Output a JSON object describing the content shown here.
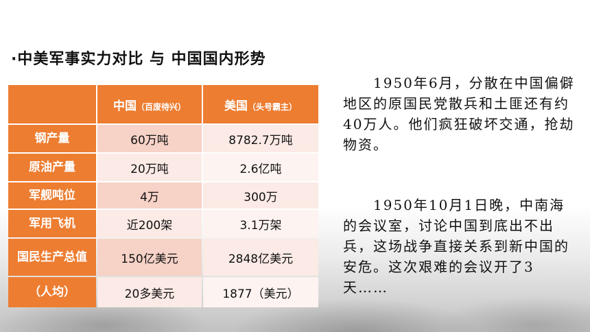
{
  "title": "·中美军事实力对比 与 中国国内形势",
  "table": {
    "header": {
      "china": "中国",
      "china_note": "（百废待兴）",
      "usa": "美国",
      "usa_note": "（头号霸主）"
    },
    "rows": [
      {
        "label": "钢产量",
        "china": "60万吨",
        "usa": "8782.7万吨"
      },
      {
        "label": "原油产量",
        "china": "20万吨",
        "usa": "2.6亿吨"
      },
      {
        "label": "军舰吨位",
        "china": "4万",
        "usa": "300万"
      },
      {
        "label": "军用飞机",
        "china": "近200架",
        "usa": "3.1万架"
      },
      {
        "label": "国民生产总值",
        "china": "150亿美元",
        "usa": "2848亿美元"
      },
      {
        "label": "（人均）",
        "china": "20多美元",
        "usa": "1877（美元）"
      }
    ]
  },
  "paragraphs": [
    "　　1950年6月，分散在中国偏僻地区的原国民党散兵和土匪还有约40万人。他们疯狂破坏交通，抢劫物资。",
    "　　1950年10月1日晚，中南海的会议室，讨论中国到底出不出兵，这场战争直接关系到新中国的安危。这次艰难的会议开了3天……"
  ],
  "colors": {
    "header_orange": "#ed7d31",
    "cell_dark": "#f6d2c7",
    "cell_light": "#fbeae5"
  }
}
